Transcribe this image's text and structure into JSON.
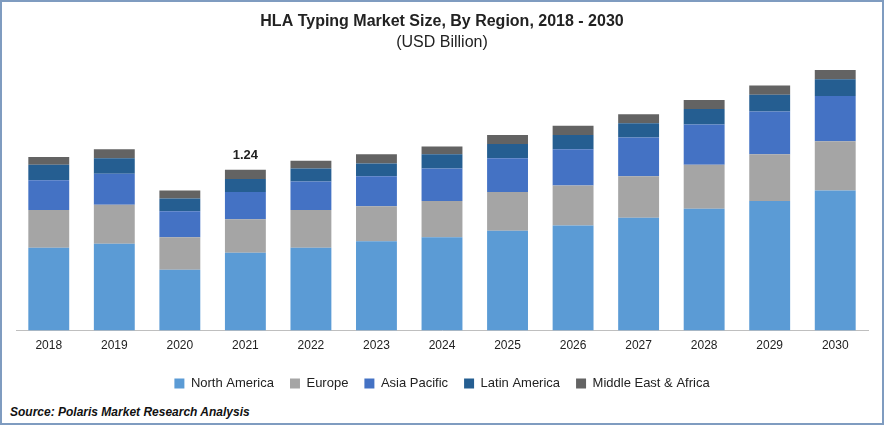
{
  "chart_data": {
    "type": "bar",
    "title": "HLA Typing Market Size, By Region, 2018 - 2030",
    "subtitle": "(USD Billion)",
    "source": "Source: Polaris Market Research Analysis",
    "categories": [
      "2018",
      "2019",
      "2020",
      "2021",
      "2022",
      "2023",
      "2024",
      "2025",
      "2026",
      "2027",
      "2028",
      "2029",
      "2030"
    ],
    "series": [
      {
        "name": "North America",
        "color": "#5b9bd5",
        "values": [
          0.64,
          0.67,
          0.47,
          0.6,
          0.64,
          0.69,
          0.72,
          0.77,
          0.81,
          0.87,
          0.94,
          1.0,
          1.08
        ]
      },
      {
        "name": "Europe",
        "color": "#a5a5a5",
        "values": [
          0.29,
          0.3,
          0.25,
          0.26,
          0.29,
          0.27,
          0.28,
          0.3,
          0.31,
          0.32,
          0.34,
          0.36,
          0.38
        ]
      },
      {
        "name": "Asia Pacific",
        "color": "#4472c4",
        "values": [
          0.23,
          0.24,
          0.2,
          0.21,
          0.22,
          0.23,
          0.25,
          0.26,
          0.28,
          0.3,
          0.31,
          0.33,
          0.35
        ]
      },
      {
        "name": "Latin America",
        "color": "#255e91",
        "values": [
          0.12,
          0.12,
          0.1,
          0.1,
          0.1,
          0.1,
          0.11,
          0.11,
          0.11,
          0.11,
          0.12,
          0.13,
          0.13
        ]
      },
      {
        "name": "Middle East & Africa",
        "color": "#636363",
        "values": [
          0.06,
          0.07,
          0.06,
          0.07,
          0.06,
          0.07,
          0.06,
          0.07,
          0.07,
          0.07,
          0.07,
          0.07,
          0.07
        ]
      }
    ],
    "annotations": [
      {
        "text": "1.24",
        "x": "2021",
        "y": 1.24
      }
    ],
    "ylim": [
      0,
      2.1
    ],
    "stacked": true,
    "grid": false,
    "legend": "bottom",
    "tick_labels": "x"
  }
}
